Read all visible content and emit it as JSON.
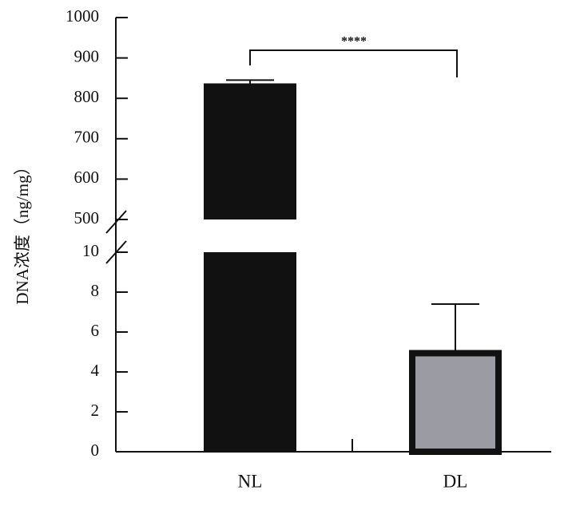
{
  "chart_data": {
    "type": "bar",
    "ylabel": "DNA浓度（ng/mg）",
    "categories": [
      "NL",
      "DL"
    ],
    "values": [
      837,
      5.1
    ],
    "errors": [
      8,
      2.3
    ],
    "colors": [
      "#111111",
      "#9a9ba3"
    ],
    "edgecolor": "#111111",
    "axis_segments": [
      {
        "ylim": [
          0,
          10
        ],
        "yticks": [
          0,
          2,
          4,
          6,
          8,
          10
        ]
      },
      {
        "ylim": [
          500,
          1000
        ],
        "yticks": [
          500,
          600,
          700,
          800,
          900,
          1000
        ]
      }
    ],
    "significance": "****"
  }
}
